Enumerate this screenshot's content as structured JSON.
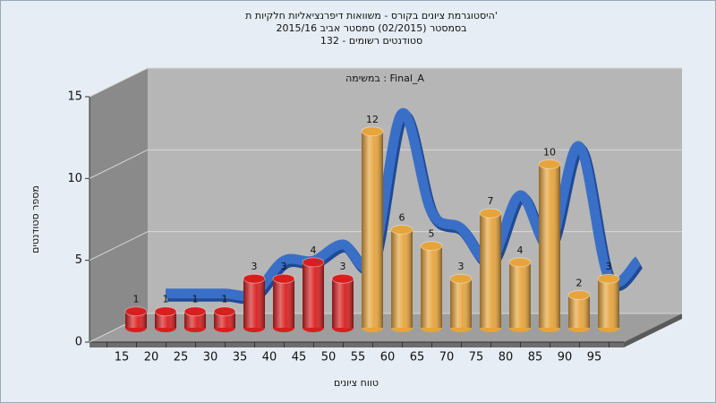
{
  "chart_data": {
    "type": "bar",
    "title": "היסטוגרמת ציונים בקורס - משוואות דיפרנציאליות חלקיות ת'",
    "subtitle": "בסמסטר  (02/2015)  סמסטר אביב 2015/16",
    "subtitle2": "סטודנטים רשומים - 132",
    "annotation": "במשימה : Final_A",
    "y_label": "מספר סטודנטים",
    "x_label": "טווח ציונים",
    "categories": [
      "15",
      "20",
      "25",
      "30",
      "35",
      "40",
      "45",
      "50",
      "55",
      "60",
      "65",
      "70",
      "75",
      "80",
      "85",
      "90",
      "95"
    ],
    "values": [
      1,
      1,
      1,
      1,
      3,
      3,
      4,
      3,
      12,
      6,
      5,
      3,
      7,
      4,
      10,
      2,
      3
    ],
    "bar_colors": [
      "#d81e1e",
      "#d81e1e",
      "#d81e1e",
      "#d81e1e",
      "#d81e1e",
      "#d81e1e",
      "#d81e1e",
      "#d81e1e",
      "#e6a43c",
      "#e6a43c",
      "#e6a43c",
      "#e6a43c",
      "#e6a43c",
      "#e6a43c",
      "#e6a43c",
      "#e6a43c",
      "#e6a43c"
    ],
    "line_color": "#3a6fc8",
    "ylim": [
      0,
      15
    ],
    "yticks": [
      0,
      5,
      10,
      15
    ],
    "grid": true
  }
}
